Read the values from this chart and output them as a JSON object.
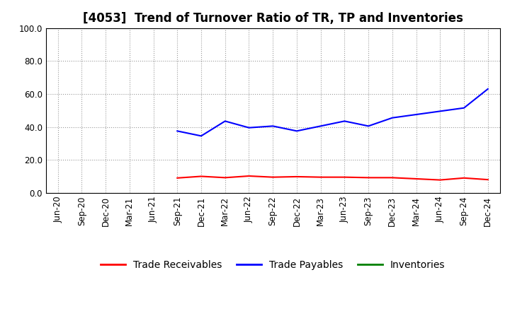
{
  "title": "[4053]  Trend of Turnover Ratio of TR, TP and Inventories",
  "ylim": [
    0.0,
    100.0
  ],
  "yticks": [
    0.0,
    20.0,
    40.0,
    60.0,
    80.0,
    100.0
  ],
  "x_labels": [
    "Jun-20",
    "Sep-20",
    "Dec-20",
    "Mar-21",
    "Jun-21",
    "Sep-21",
    "Dec-21",
    "Mar-22",
    "Jun-22",
    "Sep-22",
    "Dec-22",
    "Mar-23",
    "Jun-23",
    "Sep-23",
    "Dec-23",
    "Mar-24",
    "Jun-24",
    "Sep-24",
    "Dec-24"
  ],
  "trade_receivables": [
    null,
    null,
    null,
    null,
    null,
    9.0,
    10.0,
    9.2,
    10.2,
    9.5,
    9.8,
    9.5,
    9.5,
    9.2,
    9.2,
    8.5,
    7.8,
    9.0,
    8.0
  ],
  "trade_payables": [
    null,
    null,
    null,
    null,
    null,
    37.5,
    34.5,
    43.5,
    39.5,
    40.5,
    37.5,
    40.5,
    43.5,
    40.5,
    45.5,
    47.5,
    49.5,
    51.5,
    63.0
  ],
  "inventories": [
    null,
    null,
    null,
    null,
    null,
    null,
    null,
    null,
    null,
    null,
    null,
    null,
    null,
    null,
    null,
    null,
    null,
    null,
    null
  ],
  "tr_color": "#ff0000",
  "tp_color": "#0000ff",
  "inv_color": "#008000",
  "bg_color": "#ffffff",
  "grid_color": "#999999",
  "title_fontsize": 12,
  "tick_fontsize": 8.5,
  "legend_fontsize": 10
}
